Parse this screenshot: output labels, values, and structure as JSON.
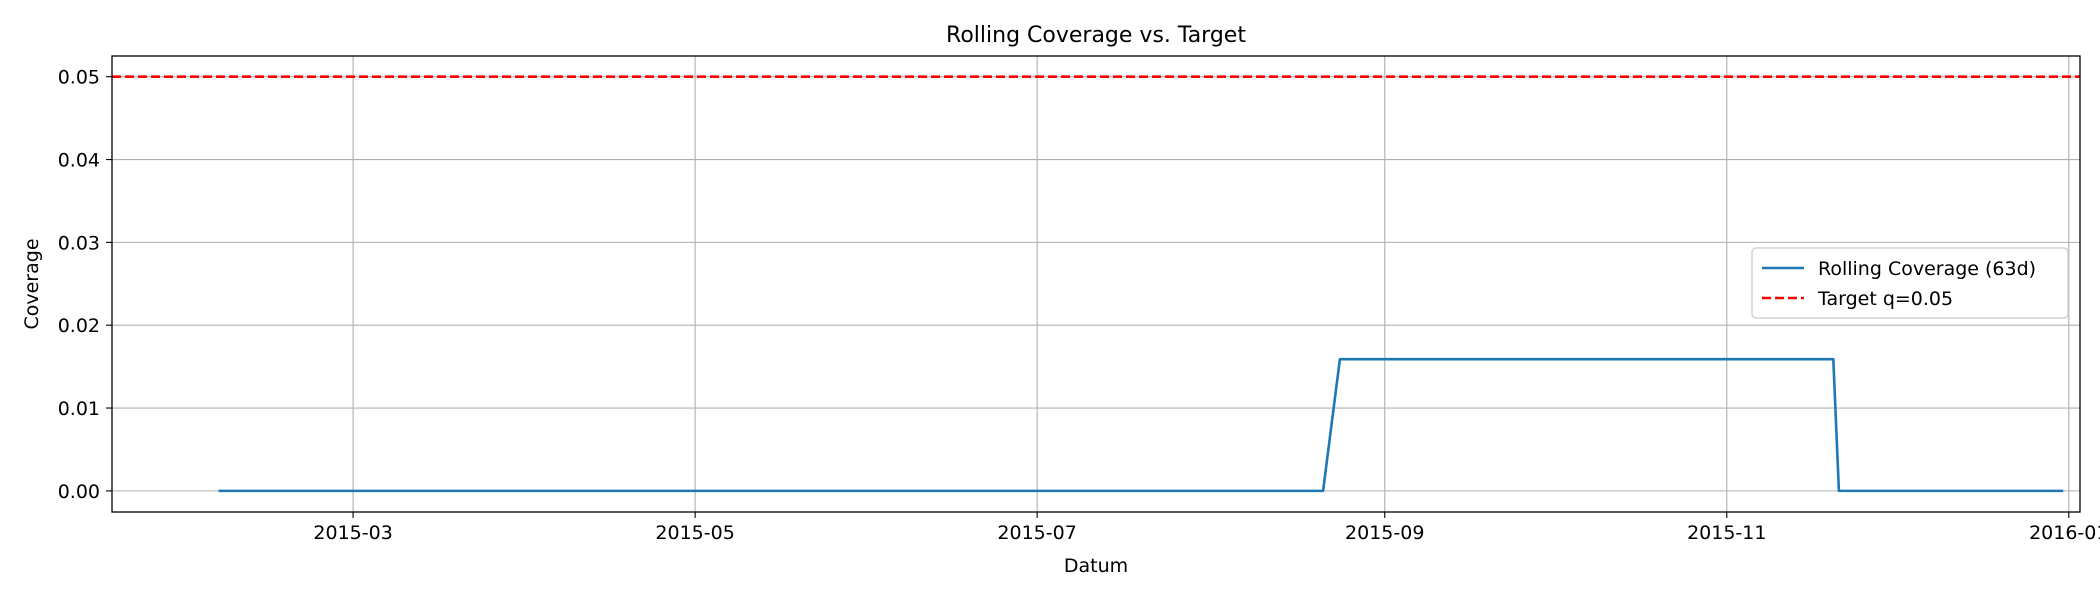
{
  "chart_data": {
    "type": "line",
    "title": "Rolling Coverage vs. Target",
    "xlabel": "Datum",
    "ylabel": "Coverage",
    "x_axis": {
      "kind": "date",
      "range": [
        "2015-01-17",
        "2016-01-03"
      ],
      "ticks": [
        "2015-03-01",
        "2015-05-01",
        "2015-07-01",
        "2015-09-01",
        "2015-11-01",
        "2016-01-01"
      ],
      "tick_labels": [
        "2015-03",
        "2015-05",
        "2015-07",
        "2015-09",
        "2015-11",
        "2016-01"
      ]
    },
    "y_axis": {
      "range": [
        -0.00255,
        0.0525
      ],
      "ticks": [
        0.0,
        0.01,
        0.02,
        0.03,
        0.04,
        0.05
      ],
      "tick_labels": [
        "0.00",
        "0.01",
        "0.02",
        "0.03",
        "0.04",
        "0.05"
      ]
    },
    "grid": true,
    "legend_position": "center-right",
    "series": [
      {
        "name": "Rolling Coverage (63d)",
        "color": "#1f77b4",
        "style": "solid",
        "points": [
          {
            "x": "2015-02-05",
            "y": 0.0
          },
          {
            "x": "2015-08-21",
            "y": 0.0
          },
          {
            "x": "2015-08-24",
            "y": 0.0159
          },
          {
            "x": "2015-11-20",
            "y": 0.0159
          },
          {
            "x": "2015-11-21",
            "y": 0.0
          },
          {
            "x": "2015-12-31",
            "y": 0.0
          }
        ]
      },
      {
        "name": "Target q=0.05",
        "color": "#ff0000",
        "style": "dashed",
        "hline": 0.05
      }
    ]
  }
}
